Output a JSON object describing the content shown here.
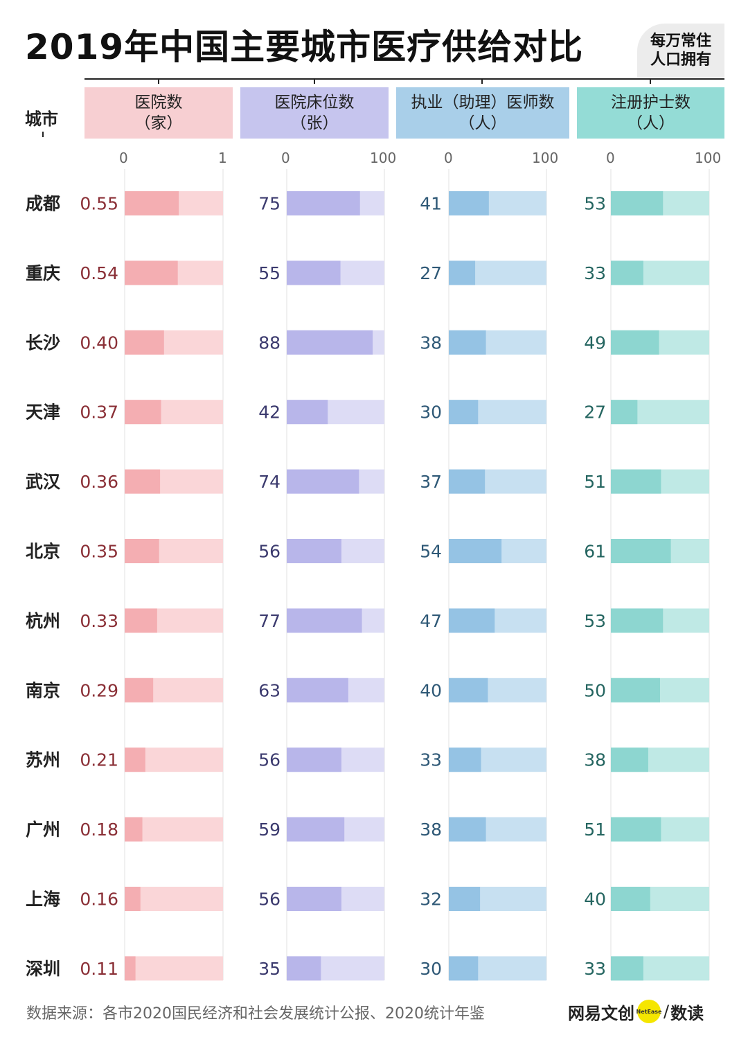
{
  "title": "2019年中国主要城市医疗供给对比",
  "unit_badge": [
    "每万常住",
    "人口拥有"
  ],
  "city_header": "城市",
  "source": "数据来源：各市2020国民经济和社会发展统计公报、2020统计年鉴",
  "brand": {
    "name": "网易文创",
    "dot_text": "NetEase",
    "slash": "/",
    "sub": "数读"
  },
  "colors": {
    "hospitals": {
      "header": "#f7cfd2",
      "bar": "#f4aeb2",
      "track": "#fad6d8",
      "text": "#8a2f36"
    },
    "beds": {
      "header": "#c6c5ee",
      "bar": "#b8b6ea",
      "track": "#dddcf5",
      "text": "#3b3a6e"
    },
    "doctors": {
      "header": "#a9cfe9",
      "bar": "#95c3e4",
      "track": "#c7e0f1",
      "text": "#2e5876"
    },
    "nurses": {
      "header": "#94dcd6",
      "bar": "#8dd6d0",
      "track": "#bfe9e5",
      "text": "#246560"
    }
  },
  "chart_data": {
    "type": "bar",
    "categories": [
      "成都",
      "重庆",
      "长沙",
      "天津",
      "武汉",
      "北京",
      "杭州",
      "南京",
      "苏州",
      "广州",
      "上海",
      "深圳"
    ],
    "series": [
      {
        "key": "hospitals",
        "name": "医院数",
        "unit": "（家）",
        "xlim": [
          0,
          1
        ],
        "ticks": [
          "0",
          "1"
        ],
        "values": [
          0.55,
          0.54,
          0.4,
          0.37,
          0.36,
          0.35,
          0.33,
          0.29,
          0.21,
          0.18,
          0.16,
          0.11
        ],
        "labels": [
          "0.55",
          "0.54",
          "0.40",
          "0.37",
          "0.36",
          "0.35",
          "0.33",
          "0.29",
          "0.21",
          "0.18",
          "0.16",
          "0.11"
        ]
      },
      {
        "key": "beds",
        "name": "医院床位数",
        "unit": "（张）",
        "xlim": [
          0,
          100
        ],
        "ticks": [
          "0",
          "100"
        ],
        "values": [
          75,
          55,
          88,
          42,
          74,
          56,
          77,
          63,
          56,
          59,
          56,
          35
        ],
        "labels": [
          "75",
          "55",
          "88",
          "42",
          "74",
          "56",
          "77",
          "63",
          "56",
          "59",
          "56",
          "35"
        ]
      },
      {
        "key": "doctors",
        "name": "执业（助理）医师数",
        "unit": "（人）",
        "xlim": [
          0,
          100
        ],
        "ticks": [
          "0",
          "100"
        ],
        "values": [
          41,
          27,
          38,
          30,
          37,
          54,
          47,
          40,
          33,
          38,
          32,
          30
        ],
        "labels": [
          "41",
          "27",
          "38",
          "30",
          "37",
          "54",
          "47",
          "40",
          "33",
          "38",
          "32",
          "30"
        ]
      },
      {
        "key": "nurses",
        "name": "注册护士数",
        "unit": "（人）",
        "xlim": [
          0,
          100
        ],
        "ticks": [
          "0",
          "100"
        ],
        "values": [
          53,
          33,
          49,
          27,
          51,
          61,
          53,
          50,
          38,
          51,
          40,
          33
        ],
        "labels": [
          "53",
          "33",
          "49",
          "27",
          "51",
          "61",
          "53",
          "50",
          "38",
          "51",
          "40",
          "33"
        ]
      }
    ]
  }
}
